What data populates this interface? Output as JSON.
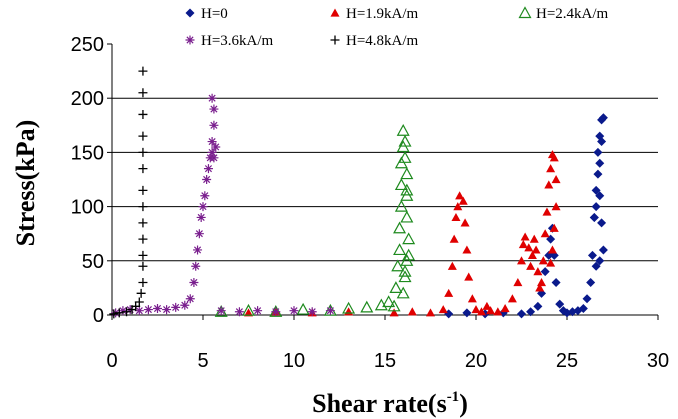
{
  "chart_data": {
    "type": "scatter",
    "title": "",
    "xlabel": "Shear rate(s",
    "xlabel_sup": "-1",
    "xlabel_close": ")",
    "ylabel": "Stress(kPa)",
    "xlim": [
      0,
      30
    ],
    "ylim": [
      0,
      250
    ],
    "xticks": [
      0,
      5,
      10,
      15,
      20,
      25,
      30
    ],
    "yticks": [
      0,
      50,
      100,
      150,
      200,
      250
    ],
    "grid": "horizontal",
    "legend": "top",
    "series": [
      {
        "name": "H=0",
        "marker": "diamond",
        "color": "#0a1a8c",
        "points": [
          [
            18.5,
            1
          ],
          [
            19.5,
            2
          ],
          [
            20.5,
            1
          ],
          [
            21.5,
            2
          ],
          [
            22.5,
            1
          ],
          [
            23.0,
            3
          ],
          [
            23.4,
            8
          ],
          [
            23.6,
            20
          ],
          [
            23.8,
            40
          ],
          [
            24.0,
            55
          ],
          [
            24.1,
            70
          ],
          [
            24.2,
            80
          ],
          [
            24.3,
            55
          ],
          [
            24.4,
            30
          ],
          [
            24.6,
            10
          ],
          [
            24.8,
            4
          ],
          [
            25.0,
            2
          ],
          [
            25.3,
            3
          ],
          [
            25.6,
            4
          ],
          [
            25.9,
            6
          ],
          [
            26.1,
            15
          ],
          [
            26.3,
            30
          ],
          [
            26.4,
            55
          ],
          [
            26.5,
            90
          ],
          [
            26.6,
            115
          ],
          [
            26.7,
            130
          ],
          [
            26.7,
            150
          ],
          [
            26.8,
            165
          ],
          [
            26.9,
            180
          ],
          [
            27.0,
            182
          ],
          [
            26.9,
            160
          ],
          [
            26.8,
            140
          ],
          [
            26.8,
            110
          ],
          [
            26.9,
            85
          ],
          [
            27.0,
            60
          ],
          [
            26.8,
            50
          ],
          [
            26.6,
            45
          ],
          [
            26.5,
            90
          ],
          [
            26.6,
            100
          ]
        ]
      },
      {
        "name": "H=1.9kA/m",
        "marker": "triangle",
        "color": "#e00000",
        "points": [
          [
            7.5,
            2
          ],
          [
            9,
            3
          ],
          [
            11,
            2
          ],
          [
            13,
            3
          ],
          [
            15.5,
            2
          ],
          [
            16.5,
            3
          ],
          [
            17.5,
            2
          ],
          [
            18.2,
            5
          ],
          [
            18.5,
            20
          ],
          [
            18.7,
            45
          ],
          [
            18.8,
            70
          ],
          [
            18.9,
            90
          ],
          [
            19.0,
            100
          ],
          [
            19.1,
            110
          ],
          [
            19.3,
            105
          ],
          [
            19.4,
            85
          ],
          [
            19.5,
            60
          ],
          [
            19.6,
            35
          ],
          [
            19.8,
            15
          ],
          [
            20.0,
            5
          ],
          [
            20.3,
            3
          ],
          [
            20.6,
            8
          ],
          [
            20.8,
            4
          ],
          [
            21.2,
            3
          ],
          [
            21.6,
            6
          ],
          [
            22.0,
            15
          ],
          [
            22.3,
            30
          ],
          [
            22.5,
            50
          ],
          [
            22.6,
            65
          ],
          [
            22.7,
            72
          ],
          [
            22.9,
            62
          ],
          [
            23.0,
            45
          ],
          [
            23.1,
            55
          ],
          [
            23.2,
            70
          ],
          [
            23.3,
            60
          ],
          [
            23.4,
            40
          ],
          [
            23.5,
            25
          ],
          [
            23.6,
            30
          ],
          [
            23.7,
            50
          ],
          [
            23.8,
            75
          ],
          [
            23.9,
            95
          ],
          [
            24.0,
            120
          ],
          [
            24.1,
            135
          ],
          [
            24.2,
            148
          ],
          [
            24.3,
            145
          ],
          [
            24.4,
            125
          ],
          [
            24.4,
            100
          ],
          [
            24.3,
            80
          ],
          [
            24.2,
            60
          ],
          [
            24.1,
            48
          ]
        ]
      },
      {
        "name": "H=2.4kA/m",
        "marker": "triangle-open",
        "color": "#1e8a1e",
        "points": [
          [
            6,
            3
          ],
          [
            7.5,
            4
          ],
          [
            9,
            3
          ],
          [
            10.5,
            5
          ],
          [
            12,
            4
          ],
          [
            13,
            6
          ],
          [
            14,
            7
          ],
          [
            14.8,
            9
          ],
          [
            15.2,
            12
          ],
          [
            15.5,
            8
          ],
          [
            15.6,
            25
          ],
          [
            15.7,
            45
          ],
          [
            15.8,
            60
          ],
          [
            15.8,
            80
          ],
          [
            15.9,
            100
          ],
          [
            15.9,
            120
          ],
          [
            15.9,
            140
          ],
          [
            16.0,
            155
          ],
          [
            16.0,
            170
          ],
          [
            16.1,
            160
          ],
          [
            16.1,
            145
          ],
          [
            16.2,
            130
          ],
          [
            16.2,
            110
          ],
          [
            16.2,
            90
          ],
          [
            16.3,
            70
          ],
          [
            16.2,
            50
          ],
          [
            16.1,
            35
          ],
          [
            16.0,
            20
          ],
          [
            16.1,
            40
          ],
          [
            16.2,
            115
          ],
          [
            16.3,
            55
          ]
        ]
      },
      {
        "name": "H=3.6kA/m",
        "marker": "asterisk",
        "color": "#7a1f8e",
        "points": [
          [
            0.2,
            2
          ],
          [
            0.6,
            4
          ],
          [
            1.0,
            5
          ],
          [
            1.5,
            4
          ],
          [
            2.0,
            5
          ],
          [
            2.5,
            6
          ],
          [
            3.0,
            5
          ],
          [
            3.5,
            7
          ],
          [
            4.0,
            9
          ],
          [
            4.3,
            15
          ],
          [
            4.5,
            30
          ],
          [
            4.6,
            45
          ],
          [
            4.7,
            60
          ],
          [
            4.8,
            75
          ],
          [
            4.9,
            90
          ],
          [
            5.0,
            100
          ],
          [
            5.1,
            110
          ],
          [
            5.2,
            125
          ],
          [
            5.3,
            135
          ],
          [
            5.4,
            145
          ],
          [
            5.5,
            150
          ],
          [
            5.5,
            160
          ],
          [
            5.6,
            175
          ],
          [
            5.6,
            190
          ],
          [
            5.5,
            200
          ],
          [
            5.6,
            145
          ],
          [
            5.7,
            155
          ],
          [
            6.0,
            4
          ],
          [
            7.0,
            3
          ],
          [
            8.0,
            4
          ],
          [
            9.0,
            3
          ],
          [
            10,
            4
          ],
          [
            11,
            3
          ],
          [
            12,
            4
          ]
        ]
      },
      {
        "name": "H=4.8kA/m",
        "marker": "plus",
        "color": "#000000",
        "points": [
          [
            0.1,
            1
          ],
          [
            0.4,
            2
          ],
          [
            0.8,
            3
          ],
          [
            1.1,
            5
          ],
          [
            1.3,
            8
          ],
          [
            1.5,
            12
          ],
          [
            1.6,
            20
          ],
          [
            1.7,
            30
          ],
          [
            1.7,
            45
          ],
          [
            1.7,
            55
          ],
          [
            1.7,
            70
          ],
          [
            1.7,
            85
          ],
          [
            1.7,
            100
          ],
          [
            1.7,
            115
          ],
          [
            1.7,
            135
          ],
          [
            1.7,
            150
          ],
          [
            1.7,
            165
          ],
          [
            1.7,
            185
          ],
          [
            1.7,
            205
          ],
          [
            1.7,
            225
          ]
        ]
      }
    ]
  }
}
